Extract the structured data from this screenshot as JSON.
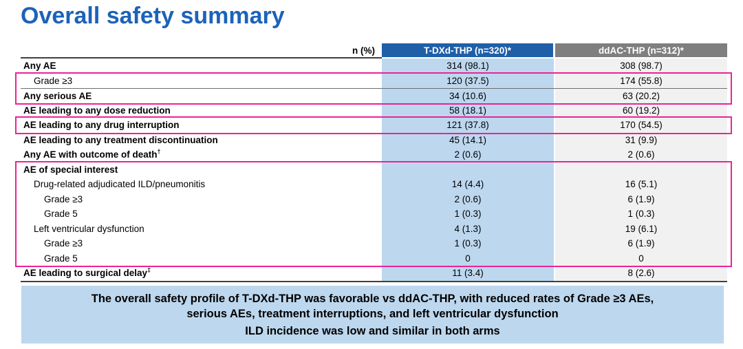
{
  "title": "Overall safety summary",
  "colors": {
    "title_blue": "#1C63B8",
    "header_blue": "#1F5FA8",
    "header_gray": "#7F7F7F",
    "col1_fill": "#BDD7EE",
    "col2_fill": "#F1F1F1",
    "summary_fill": "#BDD7EE",
    "accent_pink": "#EC2296"
  },
  "table": {
    "n_pct_label": "n (%)",
    "columns": [
      {
        "label": "T-DXd-THP (n=320)*"
      },
      {
        "label": "ddAC-THP (n=312)*"
      }
    ],
    "rows": [
      {
        "label": "Any AE",
        "sup": "",
        "indent": 0,
        "bold": true,
        "rule_above": false,
        "values": [
          "314 (98.1)",
          "308 (98.7)"
        ]
      },
      {
        "label": "Grade ≥3",
        "sup": "",
        "indent": 1,
        "bold": false,
        "rule_above": false,
        "values": [
          "120 (37.5)",
          "174 (55.8)"
        ]
      },
      {
        "label": "Any serious AE",
        "sup": "",
        "indent": 0,
        "bold": true,
        "rule_above": true,
        "values": [
          "34 (10.6)",
          "63 (20.2)"
        ]
      },
      {
        "label": "AE leading to any dose reduction",
        "sup": "",
        "indent": 0,
        "bold": true,
        "rule_above": false,
        "values": [
          "58 (18.1)",
          "60 (19.2)"
        ]
      },
      {
        "label": "AE leading to any drug interruption",
        "sup": "",
        "indent": 0,
        "bold": true,
        "rule_above": false,
        "values": [
          "121 (37.8)",
          "170 (54.5)"
        ]
      },
      {
        "label": "AE leading to any treatment discontinuation",
        "sup": "",
        "indent": 0,
        "bold": true,
        "rule_above": false,
        "values": [
          "45 (14.1)",
          "31 (9.9)"
        ]
      },
      {
        "label": "Any AE with outcome of death",
        "sup": "†",
        "indent": 0,
        "bold": true,
        "rule_above": false,
        "values": [
          "2 (0.6)",
          "2 (0.6)"
        ]
      },
      {
        "label": "AE of special interest",
        "sup": "",
        "indent": 0,
        "bold": true,
        "rule_above": false,
        "values": [
          "",
          ""
        ]
      },
      {
        "label": "Drug-related adjudicated ILD/pneumonitis",
        "sup": "",
        "indent": 1,
        "bold": false,
        "rule_above": false,
        "values": [
          "14 (4.4)",
          "16 (5.1)"
        ]
      },
      {
        "label": "Grade ≥3",
        "sup": "",
        "indent": 2,
        "bold": false,
        "rule_above": false,
        "values": [
          "2 (0.6)",
          "6 (1.9)"
        ]
      },
      {
        "label": "Grade 5",
        "sup": "",
        "indent": 2,
        "bold": false,
        "rule_above": false,
        "values": [
          "1 (0.3)",
          "1 (0.3)"
        ]
      },
      {
        "label": "Left ventricular dysfunction",
        "sup": "",
        "indent": 1,
        "bold": false,
        "rule_above": false,
        "values": [
          "4 (1.3)",
          "19 (6.1)"
        ]
      },
      {
        "label": "Grade ≥3",
        "sup": "",
        "indent": 2,
        "bold": false,
        "rule_above": false,
        "values": [
          "1 (0.3)",
          "6 (1.9)"
        ]
      },
      {
        "label": "Grade 5",
        "sup": "",
        "indent": 2,
        "bold": false,
        "rule_above": false,
        "values": [
          "0",
          "0"
        ]
      },
      {
        "label": "AE leading to surgical delay",
        "sup": "‡",
        "indent": 0,
        "bold": true,
        "rule_above": false,
        "values": [
          "11 (3.4)",
          "8 (2.6)"
        ]
      }
    ],
    "highlight_groups": [
      [
        1,
        2
      ],
      [
        4,
        4
      ],
      [
        7,
        13
      ]
    ]
  },
  "summary": {
    "line1": "The overall safety profile of T-DXd-THP was favorable vs ddAC-THP, with reduced rates of Grade ≥3 AEs, serious AEs, treatment interruptions, and left ventricular dysfunction",
    "line2": "ILD incidence was low and similar in both arms"
  }
}
